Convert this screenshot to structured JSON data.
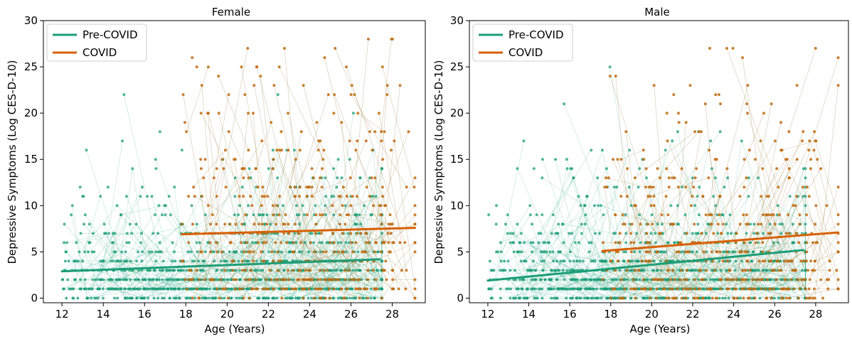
{
  "chart_data": [
    {
      "type": "scatter",
      "title": "Female",
      "xlabel": "Age (Years)",
      "ylabel": "Depressive Symptoms (Log CES-D-10)",
      "xlim": [
        11.1,
        29.6
      ],
      "ylim": [
        -0.5,
        30
      ],
      "x_ticks": [
        12,
        14,
        16,
        18,
        20,
        22,
        24,
        26,
        28
      ],
      "y_ticks": [
        0,
        5,
        10,
        15,
        20,
        25,
        30
      ],
      "x_tick_labels": [
        "12",
        "14",
        "16",
        "18",
        "20",
        "22",
        "24",
        "26",
        "28"
      ],
      "y_tick_labels": [
        "0",
        "5",
        "10",
        "15",
        "20",
        "25",
        "30"
      ],
      "legend_position": "top-left",
      "series": [
        {
          "name": "Pre-COVID",
          "color": "#1b9e77",
          "trend": {
            "x": [
              12.0,
              27.4
            ],
            "y": [
              2.9,
              4.2
            ]
          },
          "x_range": [
            12.0,
            27.5
          ]
        },
        {
          "name": "COVID",
          "color": "#d95f02",
          "trend": {
            "x": [
              17.8,
              29.1
            ],
            "y": [
              6.9,
              7.6
            ]
          },
          "x_range": [
            17.8,
            29.1
          ]
        }
      ]
    },
    {
      "type": "scatter",
      "title": "Male",
      "xlabel": "Age (Years)",
      "ylabel": "Depressive Symptoms (Log CES-D-10)",
      "xlim": [
        11.1,
        29.6
      ],
      "ylim": [
        -0.5,
        30
      ],
      "x_ticks": [
        12,
        14,
        16,
        18,
        20,
        22,
        24,
        26,
        28
      ],
      "y_ticks": [
        0,
        5,
        10,
        15,
        20,
        25,
        30
      ],
      "x_tick_labels": [
        "12",
        "14",
        "16",
        "18",
        "20",
        "22",
        "24",
        "26",
        "28"
      ],
      "y_tick_labels": [
        "0",
        "5",
        "10",
        "15",
        "20",
        "25",
        "30"
      ],
      "legend_position": "top-left",
      "series": [
        {
          "name": "Pre-COVID",
          "color": "#1b9e77",
          "trend": {
            "x": [
              12.0,
              27.4
            ],
            "y": [
              1.9,
              5.2
            ]
          },
          "x_range": [
            12.0,
            27.5
          ]
        },
        {
          "name": "COVID",
          "color": "#d95f02",
          "trend": {
            "x": [
              17.6,
              29.1
            ],
            "y": [
              5.1,
              7.1
            ]
          },
          "x_range": [
            17.6,
            29.1
          ]
        }
      ]
    }
  ]
}
